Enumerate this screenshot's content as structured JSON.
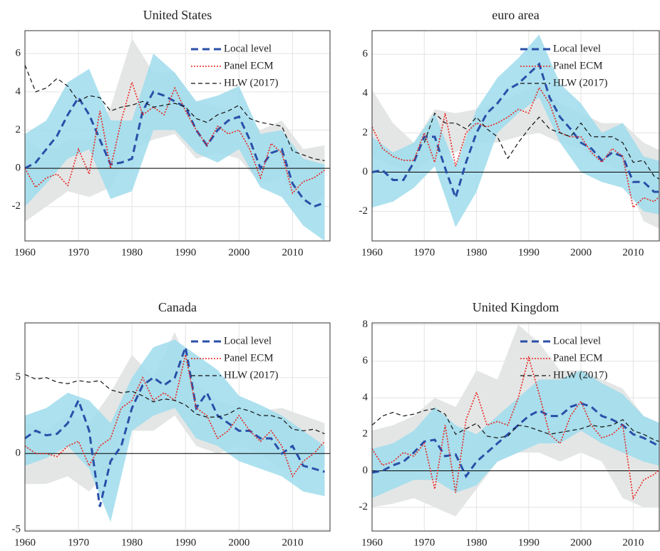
{
  "chart_data": [
    {
      "type": "line",
      "title": "United States",
      "xlim": [
        1960,
        2017
      ],
      "ylim": [
        -3.8,
        7.2
      ],
      "xticks": [
        1960,
        1970,
        1980,
        1990,
        2000,
        2010
      ],
      "yticks": [
        -2,
        0,
        2,
        4,
        6
      ],
      "grid": true,
      "legend": "upper right",
      "x": [
        1960,
        1962,
        1964,
        1966,
        1968,
        1970,
        1972,
        1974,
        1976,
        1978,
        1980,
        1982,
        1984,
        1986,
        1988,
        1990,
        1992,
        1994,
        1996,
        1998,
        2000,
        2002,
        2004,
        2006,
        2008,
        2010,
        2012,
        2014,
        2016
      ],
      "series": [
        {
          "name": "Local level",
          "color": "#2a4fa8",
          "dash": "10,6",
          "width": 3,
          "values": [
            0,
            0.3,
            1.0,
            1.7,
            2.8,
            3.7,
            2.8,
            1.5,
            0.2,
            0.3,
            0.5,
            3.0,
            4.0,
            3.8,
            3.5,
            3.2,
            2.0,
            1.2,
            2.0,
            2.5,
            2.7,
            1.5,
            0,
            0.8,
            1.0,
            -0.8,
            -1.6,
            -2.0,
            -1.8
          ]
        },
        {
          "name": "Panel ECM",
          "color": "#e8241c",
          "dash": "2,2",
          "width": 1.6,
          "values": [
            0,
            -1.0,
            -0.5,
            -0.3,
            -0.9,
            1.0,
            -0.3,
            3.0,
            0,
            2.5,
            4.5,
            2.8,
            3.2,
            2.8,
            4.2,
            3.0,
            2.0,
            1.2,
            2.2,
            1.8,
            2.0,
            1.0,
            -0.5,
            1.3,
            0.8,
            -1.3,
            -0.7,
            -0.5,
            -0.1
          ]
        },
        {
          "name": "HLW (2017)",
          "color": "#111111",
          "dash": "6,4",
          "width": 1.2,
          "values": [
            5.4,
            4.0,
            4.2,
            4.7,
            4.3,
            3.5,
            3.8,
            3.7,
            3.0,
            3.2,
            3.3,
            3.5,
            3.2,
            3.3,
            3.4,
            3.2,
            2.6,
            2.4,
            2.8,
            3.0,
            3.3,
            2.6,
            2.4,
            2.3,
            2.2,
            0.9,
            0.7,
            0.5,
            0.4
          ]
        }
      ],
      "bands": [
        {
          "color": "#e4e6e6",
          "x": [
            1960,
            1964,
            1968,
            1972,
            1976,
            1980,
            1984,
            1988,
            1992,
            1996,
            2000,
            2004,
            2008,
            2012,
            2016
          ],
          "lower": [
            -2.8,
            -2,
            -1.2,
            -1.5,
            -1.0,
            1.0,
            1.5,
            1.8,
            0.5,
            0.8,
            0.5,
            -0.8,
            -0.5,
            -2.0,
            -1.5
          ],
          "upper": [
            1.5,
            0.8,
            1.5,
            1.5,
            3.2,
            6.8,
            5.0,
            5.0,
            3.5,
            3.2,
            3.0,
            2.0,
            2.5,
            1.0,
            1.2
          ]
        },
        {
          "color": "#9fdcec",
          "x": [
            1960,
            1964,
            1968,
            1972,
            1976,
            1980,
            1984,
            1988,
            1992,
            1996,
            2000,
            2004,
            2008,
            2012,
            2016
          ],
          "lower": [
            -2,
            -0.8,
            0.5,
            1.0,
            -1.6,
            -1.2,
            2.0,
            2.0,
            0.8,
            0.3,
            1.0,
            -1.0,
            -1.5,
            -3.0,
            -3.8
          ],
          "upper": [
            1.8,
            2.5,
            4.5,
            5.2,
            2.5,
            2.5,
            6.0,
            5.0,
            3.5,
            3.8,
            4.3,
            1.8,
            2.0,
            0.5,
            0.2
          ]
        }
      ]
    },
    {
      "type": "line",
      "title": "euro area",
      "xlim": [
        1960,
        2015
      ],
      "ylim": [
        -3.5,
        7.2
      ],
      "xticks": [
        1960,
        1970,
        1980,
        1990,
        2000,
        2010
      ],
      "yticks": [
        -2,
        0,
        2,
        4,
        6
      ],
      "grid": true,
      "legend": "upper right",
      "x": [
        1960,
        1962,
        1964,
        1966,
        1968,
        1970,
        1972,
        1974,
        1976,
        1978,
        1980,
        1982,
        1984,
        1986,
        1988,
        1990,
        1992,
        1994,
        1996,
        1998,
        2000,
        2002,
        2004,
        2006,
        2008,
        2010,
        2012,
        2014,
        2016
      ],
      "series": [
        {
          "name": "Local level",
          "color": "#2a4fa8",
          "dash": "10,6",
          "width": 3,
          "values": [
            0,
            0.1,
            -0.4,
            -0.4,
            0.5,
            1.8,
            1.8,
            0.2,
            -1.3,
            0.5,
            2.0,
            3.0,
            3.5,
            4.2,
            4.5,
            5.0,
            5.5,
            3.8,
            2.8,
            2.2,
            1.5,
            1.2,
            0.6,
            1.0,
            0.8,
            -0.5,
            -0.5,
            -1.0,
            -1.0
          ]
        },
        {
          "name": "Panel ECM",
          "color": "#e8241c",
          "dash": "2,2",
          "width": 1.6,
          "values": [
            2.3,
            1.2,
            0.8,
            0.6,
            0.6,
            2.0,
            0.5,
            3.0,
            0.3,
            2.0,
            2.5,
            2.3,
            2.5,
            2.8,
            3.2,
            3.0,
            4.3,
            3.5,
            2.0,
            1.8,
            1.8,
            1.0,
            0.5,
            1.2,
            0.8,
            -1.8,
            -1.3,
            -1.5,
            -1.0
          ]
        },
        {
          "name": "HLW (2017)",
          "color": "#111111",
          "dash": "6,4",
          "width": 1.2,
          "values": [
            null,
            null,
            null,
            null,
            null,
            1.5,
            3.0,
            2.5,
            2.5,
            2.2,
            2.8,
            2.2,
            1.8,
            0.7,
            1.5,
            2.2,
            2.8,
            2.2,
            2.0,
            1.8,
            2.5,
            1.8,
            1.8,
            1.8,
            1.5,
            0.5,
            0.6,
            -0.2,
            -0.5
          ]
        }
      ],
      "bands": [
        {
          "color": "#e4e6e6",
          "x": [
            1960,
            1964,
            1968,
            1972,
            1976,
            1980,
            1984,
            1988,
            1992,
            1996,
            2000,
            2004,
            2008,
            2012,
            2016
          ],
          "lower": [
            0.8,
            0.3,
            0,
            0.8,
            1.0,
            1.5,
            1.5,
            1.8,
            2.0,
            1.5,
            1.2,
            0.5,
            0,
            -2.5,
            -3.0
          ],
          "upper": [
            4.2,
            2.5,
            1.5,
            3.2,
            3.0,
            3.2,
            3.5,
            4.0,
            4.5,
            3.5,
            3.0,
            2.5,
            2.5,
            1.5,
            1.0
          ]
        },
        {
          "color": "#9fdcec",
          "x": [
            1960,
            1964,
            1968,
            1972,
            1976,
            1980,
            1984,
            1988,
            1992,
            1996,
            2000,
            2004,
            2008,
            2012,
            2016
          ],
          "lower": [
            -1.8,
            -1.5,
            -0.8,
            0.3,
            -2.8,
            -1.0,
            2.0,
            3.0,
            3.8,
            1.5,
            0.0,
            -0.5,
            -0.8,
            -2.0,
            -2.2
          ],
          "upper": [
            1.8,
            1.0,
            1.5,
            3.0,
            0.3,
            3.2,
            4.8,
            5.8,
            7.0,
            4.5,
            3.5,
            2.0,
            2.5,
            0.8,
            0.5
          ]
        }
      ]
    },
    {
      "type": "line",
      "title": "Canada",
      "xlim": [
        1960,
        2017
      ],
      "ylim": [
        -5.1,
        8.6
      ],
      "xticks": [
        1960,
        1970,
        1980,
        1990,
        2000,
        2010
      ],
      "yticks": [
        -5,
        0,
        5
      ],
      "grid": true,
      "legend": "upper right",
      "x": [
        1960,
        1962,
        1964,
        1966,
        1968,
        1970,
        1972,
        1974,
        1976,
        1978,
        1980,
        1982,
        1984,
        1986,
        1988,
        1990,
        1992,
        1994,
        1996,
        1998,
        2000,
        2002,
        2004,
        2006,
        2008,
        2010,
        2012,
        2014,
        2016
      ],
      "series": [
        {
          "name": "Local level",
          "color": "#2a4fa8",
          "dash": "10,6",
          "width": 3,
          "values": [
            1.0,
            1.5,
            1.2,
            1.3,
            2.0,
            3.5,
            1.5,
            -3.5,
            -0.5,
            0.5,
            3.0,
            4.5,
            5.0,
            4.5,
            5.0,
            7.0,
            3.0,
            4.0,
            2.5,
            2.0,
            1.5,
            1.5,
            1.0,
            1.0,
            0.0,
            0.5,
            -0.8,
            -1.0,
            -1.2
          ]
        },
        {
          "name": "Panel ECM",
          "color": "#e8241c",
          "dash": "2,2",
          "width": 1.6,
          "values": [
            0.5,
            0,
            0,
            -0.2,
            0.5,
            0.8,
            -0.8,
            0.5,
            1.0,
            3.0,
            3.5,
            5.0,
            3.5,
            4.0,
            3.5,
            6.5,
            3.0,
            2.5,
            1.0,
            1.5,
            2.5,
            1.5,
            0.8,
            1.5,
            0.5,
            -1.5,
            -0.5,
            0,
            0.8
          ]
        },
        {
          "name": "HLW (2017)",
          "color": "#111111",
          "dash": "6,4",
          "width": 1.2,
          "values": [
            5.2,
            4.9,
            5.0,
            4.7,
            4.6,
            4.8,
            4.7,
            4.8,
            4.2,
            4.0,
            4.1,
            3.8,
            3.4,
            3.6,
            3.5,
            3.2,
            2.6,
            2.4,
            2.4,
            2.6,
            3.0,
            2.8,
            2.5,
            2.5,
            2.3,
            1.6,
            1.5,
            1.6,
            1.3
          ]
        }
      ],
      "bands": [
        {
          "color": "#e4e6e6",
          "x": [
            1960,
            1964,
            1968,
            1972,
            1976,
            1980,
            1984,
            1988,
            1992,
            1996,
            2000,
            2004,
            2008,
            2012,
            2016
          ],
          "lower": [
            -2.0,
            -2.0,
            -1.5,
            -2.5,
            -1.0,
            1.5,
            1.5,
            2.5,
            0.5,
            0,
            0.5,
            0,
            -1.0,
            -1.0,
            -1.0
          ],
          "upper": [
            2.0,
            1.5,
            2.5,
            2.0,
            4.0,
            6.5,
            5.0,
            8.0,
            4.5,
            3.5,
            3.0,
            2.8,
            3.0,
            2.5,
            2.0
          ]
        },
        {
          "color": "#9fdcec",
          "x": [
            1960,
            1964,
            1968,
            1972,
            1976,
            1980,
            1984,
            1988,
            1992,
            1996,
            2000,
            2004,
            2008,
            2012,
            2016
          ],
          "lower": [
            -0.8,
            -0.3,
            0.5,
            -1.0,
            -4.5,
            1.5,
            2.5,
            3.0,
            1.0,
            0.5,
            -0.5,
            -1.0,
            -1.5,
            -2.5,
            -2.8
          ],
          "upper": [
            2.5,
            3.0,
            4.0,
            3.5,
            2.0,
            5.0,
            7.0,
            7.5,
            6.5,
            5.5,
            3.8,
            3.2,
            2.5,
            1.5,
            0.5
          ]
        }
      ]
    },
    {
      "type": "line",
      "title": "United Kingdom",
      "xlim": [
        1960,
        2015
      ],
      "ylim": [
        -3.3,
        8.1
      ],
      "xticks": [
        1960,
        1970,
        1980,
        1990,
        2000,
        2010
      ],
      "yticks": [
        -2,
        0,
        2,
        4,
        6,
        8
      ],
      "grid": true,
      "legend": "upper right",
      "x": [
        1960,
        1962,
        1964,
        1966,
        1968,
        1970,
        1972,
        1974,
        1976,
        1978,
        1980,
        1982,
        1984,
        1986,
        1988,
        1990,
        1992,
        1994,
        1996,
        1998,
        2000,
        2002,
        2004,
        2006,
        2008,
        2010,
        2012,
        2014,
        2016
      ],
      "series": [
        {
          "name": "Local level",
          "color": "#2a4fa8",
          "dash": "10,6",
          "width": 3,
          "values": [
            -0.1,
            0,
            0.3,
            0.5,
            1.0,
            1.6,
            1.7,
            0.8,
            0.9,
            -0.3,
            0.5,
            1.0,
            1.5,
            2.0,
            2.5,
            3.0,
            3.3,
            3.0,
            3.0,
            3.5,
            3.7,
            3.5,
            3.0,
            2.8,
            2.5,
            2.0,
            1.8,
            1.5,
            1.2
          ]
        },
        {
          "name": "Panel ECM",
          "color": "#e8241c",
          "dash": "2,2",
          "width": 1.6,
          "values": [
            1.2,
            0.3,
            0.5,
            1.0,
            0.8,
            1.5,
            -1.0,
            2.5,
            -1.2,
            2.8,
            4.3,
            2.5,
            2.7,
            2.5,
            4.0,
            6.2,
            4.2,
            2.0,
            1.5,
            3.0,
            3.8,
            2.5,
            1.8,
            2.0,
            2.5,
            -1.5,
            -0.5,
            -0.2,
            0.3
          ]
        },
        {
          "name": "HLW (2017)",
          "color": "#111111",
          "dash": "6,4",
          "width": 1.2,
          "values": [
            2.5,
            3.0,
            3.2,
            3.0,
            3.1,
            3.3,
            3.4,
            3.1,
            2.0,
            2.3,
            2.6,
            1.9,
            1.8,
            1.9,
            2.5,
            2.4,
            2.2,
            2.0,
            2.1,
            2.2,
            2.3,
            2.5,
            2.4,
            2.5,
            2.8,
            2.2,
            2.0,
            1.7,
            1.5
          ]
        }
      ],
      "bands": [
        {
          "color": "#e4e6e6",
          "x": [
            1960,
            1964,
            1968,
            1972,
            1976,
            1980,
            1984,
            1988,
            1992,
            1996,
            2000,
            2004,
            2008,
            2012,
            2016
          ],
          "lower": [
            -2.0,
            -1.8,
            -1.5,
            -2.0,
            -2.5,
            -1.0,
            0.5,
            1.0,
            1.0,
            0.5,
            1.0,
            0.5,
            -1.5,
            -2.0,
            -2.0
          ],
          "upper": [
            2.2,
            2.5,
            3.0,
            4.0,
            3.5,
            5.5,
            5.0,
            8.0,
            7.0,
            5.5,
            5.5,
            5.0,
            4.5,
            3.0,
            2.5
          ]
        },
        {
          "color": "#9fdcec",
          "x": [
            1960,
            1964,
            1968,
            1972,
            1976,
            1980,
            1984,
            1988,
            1992,
            1996,
            2000,
            2004,
            2008,
            2012,
            2016
          ],
          "lower": [
            -1.5,
            -1.0,
            -0.5,
            -0.5,
            -1.2,
            -0.8,
            0.5,
            1.0,
            1.5,
            1.5,
            2.2,
            1.5,
            1.0,
            0.5,
            0.2
          ],
          "upper": [
            1.2,
            1.5,
            2.2,
            3.5,
            2.5,
            2.0,
            3.0,
            4.0,
            5.0,
            5.0,
            5.5,
            4.8,
            4.2,
            3.0,
            2.5
          ]
        }
      ]
    }
  ]
}
